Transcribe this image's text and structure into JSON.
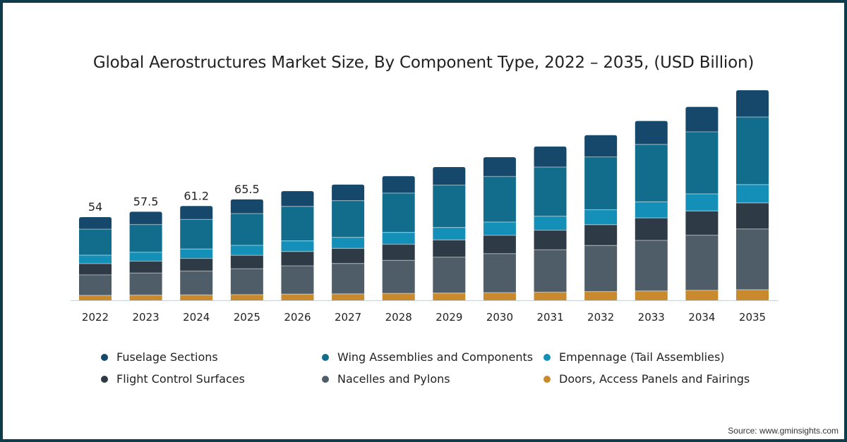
{
  "chart_data": {
    "type": "bar",
    "stacked": true,
    "title": "Global Aerostructures Market Size, By Component Type, 2022 – 2035, (USD Billion)",
    "xlabel": "",
    "ylabel": "",
    "ylim": [
      0,
      150
    ],
    "grid": false,
    "legend_position": "bottom",
    "categories": [
      "2022",
      "2023",
      "2024",
      "2025",
      "2026",
      "2027",
      "2028",
      "2029",
      "2030",
      "2031",
      "2032",
      "2033",
      "2034",
      "2035"
    ],
    "series": [
      {
        "name": "Doors, Access Panels and Fairings",
        "color": "#c98a2e",
        "values": [
          3.2,
          3.4,
          3.5,
          3.7,
          4.0,
          4.2,
          4.5,
          4.7,
          5.0,
          5.3,
          5.7,
          6.1,
          6.5,
          6.9
        ]
      },
      {
        "name": "Nacelles and Pylons",
        "color": "#4f5d68",
        "values": [
          13.3,
          14.3,
          15.5,
          16.8,
          18.4,
          19.7,
          21.4,
          23.3,
          25.3,
          27.5,
          29.9,
          32.8,
          35.8,
          39.4
        ]
      },
      {
        "name": "Flight Control Surfaces",
        "color": "#2e3a45",
        "values": [
          7.3,
          7.7,
          8.2,
          8.7,
          9.3,
          9.8,
          10.5,
          11.2,
          11.9,
          12.7,
          13.5,
          14.6,
          15.7,
          16.9
        ]
      },
      {
        "name": "Empennage (Tail Assemblies)",
        "color": "#1490b8",
        "values": [
          5.5,
          5.8,
          6.1,
          6.5,
          6.9,
          7.2,
          7.7,
          8.1,
          8.6,
          9.1,
          9.7,
          10.4,
          11.1,
          11.9
        ]
      },
      {
        "name": "Wing Assemblies and Components",
        "color": "#126d8c",
        "values": [
          16.9,
          18.0,
          19.2,
          20.6,
          22.4,
          23.8,
          25.5,
          27.5,
          29.6,
          31.9,
          34.3,
          37.3,
          40.3,
          43.9
        ]
      },
      {
        "name": "Fuselage Sections",
        "color": "#16486b",
        "values": [
          7.8,
          8.3,
          8.7,
          9.2,
          9.9,
          10.4,
          11.0,
          11.7,
          12.5,
          13.3,
          14.1,
          15.2,
          16.2,
          17.4
        ]
      }
    ],
    "data_labels": [
      "54",
      "57.5",
      "61.2",
      "65.5"
    ],
    "legend_order": [
      5,
      4,
      3,
      2,
      1,
      0
    ]
  },
  "source": "Source: www.gminsights.com"
}
